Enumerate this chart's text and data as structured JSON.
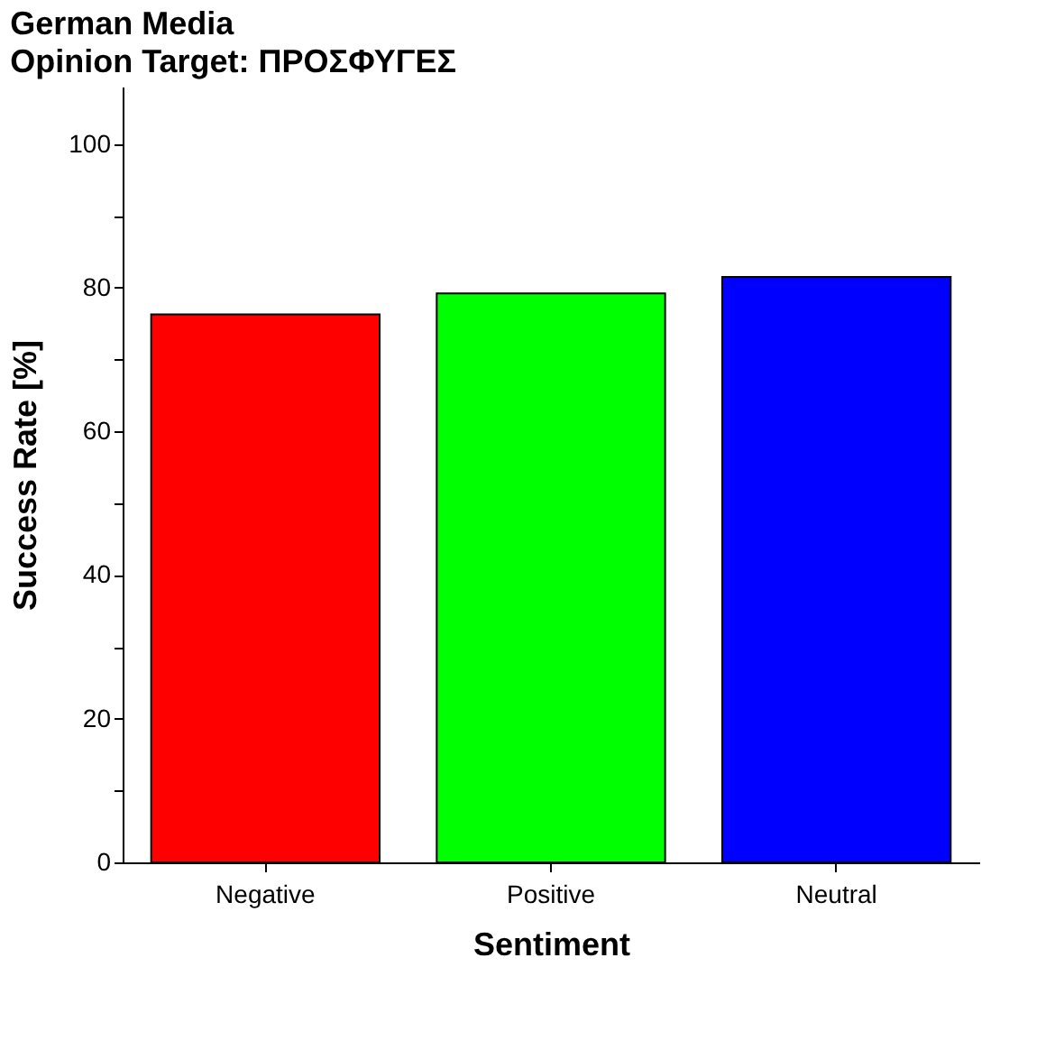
{
  "chart_data": {
    "type": "bar",
    "title": "German Media",
    "subtitle": "Opinion Target: ΠΡΟΣΦΥΓΕΣ",
    "xlabel": "Sentiment",
    "ylabel": "Success Rate [%]",
    "categories": [
      "Negative",
      "Positive",
      "Neutral"
    ],
    "values": [
      76.3,
      79.2,
      81.5
    ],
    "colors": [
      "#ff0000",
      "#00ff00",
      "#0000ff"
    ],
    "ylim": [
      0,
      108
    ],
    "yticks": [
      0,
      {
        "value": 10,
        "label": null
      },
      20,
      {
        "value": 30,
        "label": null
      },
      40,
      {
        "value": 50,
        "label": null
      },
      60,
      {
        "value": 70,
        "label": null
      },
      80,
      {
        "value": 90,
        "label": null
      },
      100
    ],
    "grid": false
  }
}
